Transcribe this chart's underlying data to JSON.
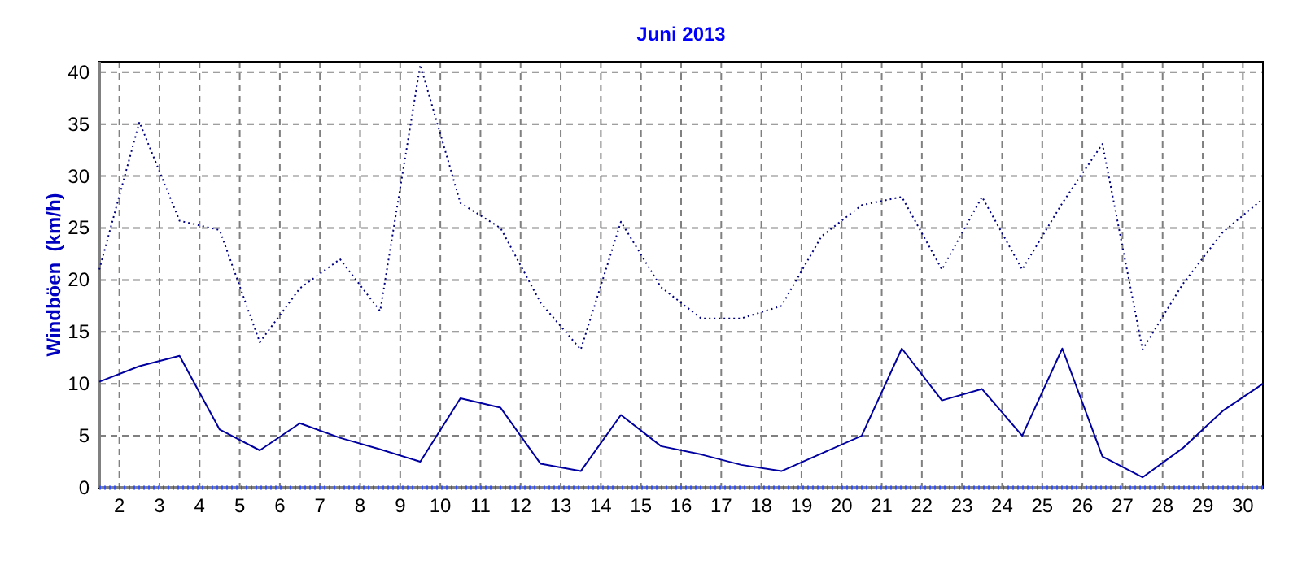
{
  "chart_data": {
    "type": "line",
    "title": "Juni 2013",
    "ylabel": "Windböen  (km/h)",
    "x": [
      1.5,
      2.5,
      3.5,
      4.5,
      5.5,
      6.5,
      7.5,
      8.5,
      9.5,
      10.5,
      11.5,
      12.5,
      13.5,
      14.5,
      15.5,
      16.5,
      17.5,
      18.5,
      19.5,
      20.5,
      21.5,
      22.5,
      23.5,
      24.5,
      25.5,
      26.5,
      27.5,
      28.5,
      29.5,
      30.5
    ],
    "series": [
      {
        "color": "#000080",
        "line_style": "dotted",
        "values": [
          21,
          35.2,
          25.7,
          24.8,
          14,
          19.2,
          22,
          17,
          40.7,
          27.4,
          25,
          17.8,
          13.3,
          25.6,
          19.3,
          16.3,
          16.3,
          17.5,
          24.2,
          27.2,
          28,
          21,
          28,
          21,
          27.4,
          33.1,
          13.3,
          19.6,
          24.6,
          27.8
        ]
      },
      {
        "color": "#0000a0",
        "line_style": "solid",
        "values": [
          10.2,
          11.7,
          12.7,
          5.6,
          3.6,
          6.2,
          4.8,
          3.7,
          2.5,
          8.6,
          7.7,
          2.3,
          1.6,
          7,
          4,
          3.2,
          2.2,
          1.6,
          3.3,
          5,
          13.4,
          8.4,
          9.5,
          5,
          13.4,
          3,
          1,
          3.8,
          7.4,
          10
        ]
      },
      {
        "color": "#3050ff",
        "line_style": "dotted",
        "values": [
          0,
          0,
          0,
          0,
          0,
          0,
          0,
          0,
          0,
          0,
          0,
          0,
          0,
          0,
          0,
          0,
          0,
          0,
          0,
          0,
          0,
          0,
          0,
          0,
          0,
          0,
          0,
          0,
          0,
          0
        ]
      }
    ],
    "xlim": [
      1.5,
      30.5
    ],
    "xticks": [
      2,
      3,
      4,
      5,
      6,
      7,
      8,
      9,
      10,
      11,
      12,
      13,
      14,
      15,
      16,
      17,
      18,
      19,
      20,
      21,
      22,
      23,
      24,
      25,
      26,
      27,
      28,
      29,
      30
    ],
    "ylim": [
      0,
      41
    ],
    "yticks": [
      0,
      5,
      10,
      15,
      20,
      25,
      30,
      35,
      40
    ],
    "grid": true
  }
}
